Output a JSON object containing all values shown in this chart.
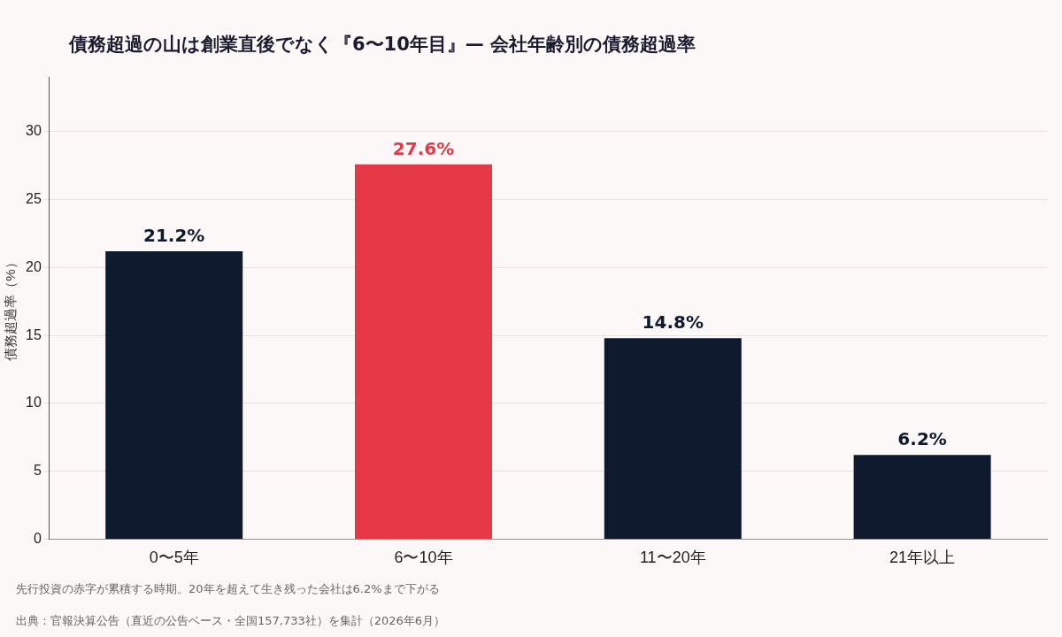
{
  "chart_data": {
    "type": "bar",
    "title": "債務超過の山は創業直後でなく『6〜10年目』— 会社年齢別の債務超過率",
    "ylabel": "債務超過率（%）",
    "categories": [
      "0〜5年",
      "6〜10年",
      "11〜20年",
      "21年以上"
    ],
    "values": [
      21.2,
      27.6,
      14.8,
      6.2
    ],
    "colors": [
      "#0f1a2e",
      "#e63946",
      "#0f1a2e",
      "#0f1a2e"
    ],
    "value_labels": [
      "21.2%",
      "27.6%",
      "14.8%",
      "6.2%"
    ],
    "ylim": [
      0,
      34
    ],
    "yticks": [
      0,
      5,
      10,
      15,
      20,
      25,
      30
    ],
    "grid": "y",
    "annotations": [
      "先行投資の赤字が累積する時期。20年を超えて生き残った会社は6.2%まで下がる",
      "出典：官報決算公告（直近の公告ベース・全国157,733社）を集計（2026年6月）"
    ]
  }
}
